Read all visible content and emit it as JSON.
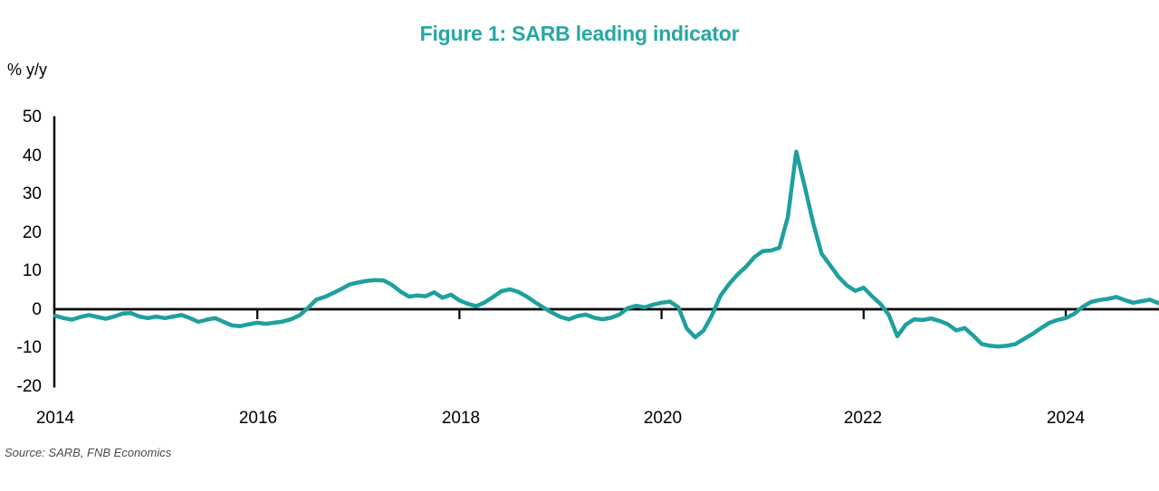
{
  "title": "Figure 1: SARB leading indicator",
  "colors": {
    "title_teal": "#26A7A3",
    "line_teal": "#1EA09E",
    "axis_black": "#000000",
    "source_gray": "#4a4a4a"
  },
  "chart_data": {
    "type": "line",
    "title": "Figure 1: SARB leading indicator",
    "ylabel": "% y/y",
    "xlabel": "",
    "ylim": [
      -20,
      50
    ],
    "y_tick_labels": [
      "50",
      "40",
      "30",
      "20",
      "10",
      "0",
      "-10",
      "-20"
    ],
    "x_tick_labels": [
      "2014",
      "2016",
      "2018",
      "2020",
      "2022",
      "2024"
    ],
    "grid": false,
    "legend": "none",
    "x_start": "2014-01",
    "x_frequency": "monthly",
    "series": [
      {
        "name": "SARB leading indicator (% y/y)",
        "values": [
          -1.7,
          -2.3,
          -2.7,
          -2.0,
          -1.5,
          -2.0,
          -2.5,
          -1.9,
          -1.1,
          -1.0,
          -1.9,
          -2.3,
          -1.9,
          -2.3,
          -1.9,
          -1.5,
          -2.3,
          -3.3,
          -2.7,
          -2.3,
          -3.3,
          -4.2,
          -4.4,
          -3.9,
          -3.5,
          -3.8,
          -3.5,
          -3.2,
          -2.6,
          -1.6,
          0.3,
          2.5,
          3.2,
          4.2,
          5.3,
          6.5,
          7.0,
          7.4,
          7.6,
          7.5,
          6.3,
          4.6,
          3.3,
          3.6,
          3.4,
          4.4,
          3.0,
          3.8,
          2.3,
          1.4,
          0.8,
          1.8,
          3.2,
          4.7,
          5.2,
          4.5,
          3.3,
          1.8,
          0.4,
          -0.9,
          -2.0,
          -2.6,
          -1.8,
          -1.4,
          -2.2,
          -2.6,
          -2.2,
          -1.4,
          0.3,
          0.9,
          0.5,
          1.2,
          1.7,
          2.0,
          0.5,
          -5.0,
          -7.3,
          -5.5,
          -1.5,
          3.5,
          6.5,
          9.0,
          11.0,
          13.5,
          15.1,
          15.3,
          16.0,
          24.0,
          41.0,
          32.0,
          22.5,
          14.5,
          11.5,
          8.5,
          6.2,
          4.8,
          5.6,
          3.4,
          1.4,
          -1.5,
          -7.0,
          -4.0,
          -2.6,
          -2.8,
          -2.4,
          -3.0,
          -3.9,
          -5.5,
          -4.9,
          -6.8,
          -9.0,
          -9.5,
          -9.7,
          -9.5,
          -9.1,
          -7.8,
          -6.5,
          -5.0,
          -3.6,
          -2.8,
          -2.3,
          -1.2,
          0.6,
          1.9,
          2.4,
          2.7,
          3.2,
          2.4,
          1.7,
          2.1,
          2.5,
          1.6
        ]
      }
    ],
    "source_note": "Source: SARB, FNB Economics"
  }
}
